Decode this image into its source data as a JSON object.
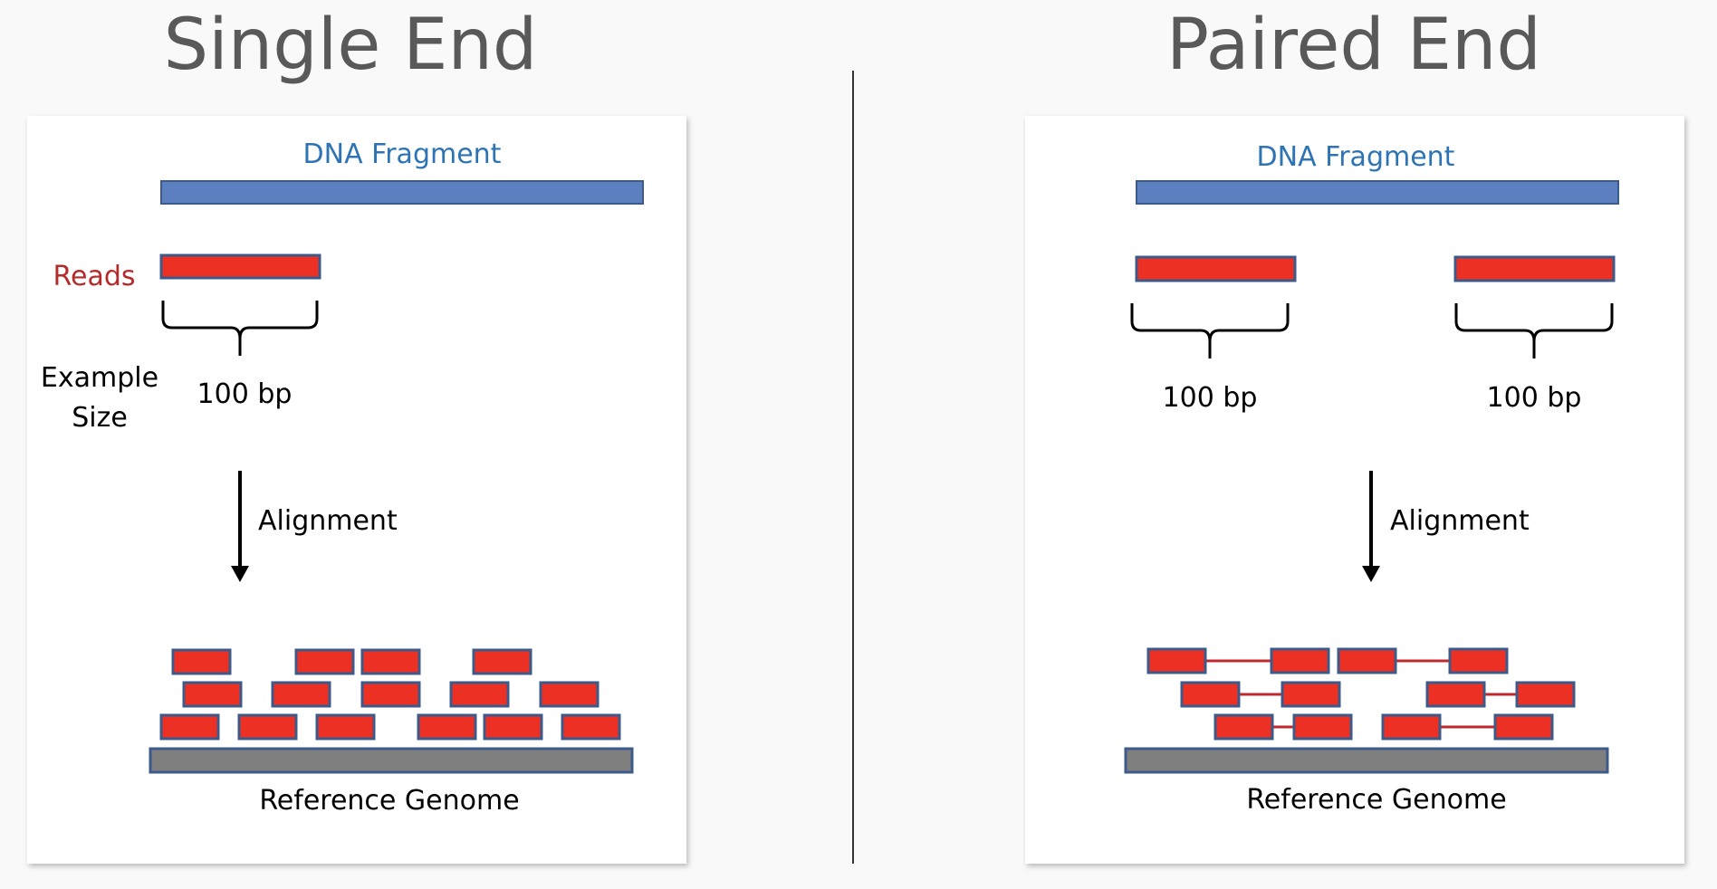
{
  "left": {
    "title": "Single End",
    "fragment_label": "DNA Fragment",
    "reads_label": "Reads",
    "example_label_line1": "Example",
    "example_label_line2": "Size",
    "size_label": "100 bp",
    "alignment_label": "Alignment",
    "reference_label": "Reference Genome"
  },
  "right": {
    "title": "Paired End",
    "fragment_label": "DNA Fragment",
    "size_label_1": "100 bp",
    "size_label_2": "100 bp",
    "alignment_label": "Alignment",
    "reference_label": "Reference Genome"
  },
  "colors": {
    "fragment": "#5B7FBF",
    "read": "#EC3024",
    "read_border": "#3C5A8A",
    "reference": "#7F7F7F",
    "pair_link": "#C0282D",
    "title": "#595959"
  }
}
